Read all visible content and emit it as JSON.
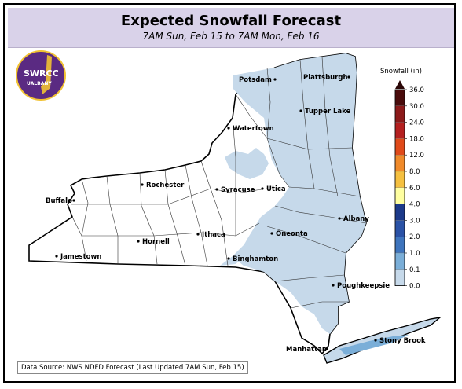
{
  "header": {
    "title": "Expected Snowfall Forecast",
    "subtitle": "7AM Sun, Feb 15 to 7AM Mon, Feb 16"
  },
  "logo": {
    "name": "SWRCC",
    "sub": "UALBANY",
    "number": "1"
  },
  "legend": {
    "title": "Snowfall (in)",
    "ticks": [
      "36.0",
      "30.0",
      "24.0",
      "18.0",
      "12.0",
      "8.0",
      "6.0",
      "4.0",
      "3.0",
      "2.0",
      "1.0",
      "0.1",
      "0.0"
    ],
    "colors": [
      "#4a0c0c",
      "#8c1a1a",
      "#b52020",
      "#e04a1a",
      "#f08a2a",
      "#f5c040",
      "#ffffa0",
      "#1c3a8a",
      "#2a52a6",
      "#3e74bd",
      "#7aaed8",
      "#c6d9ea",
      "#ffffff"
    ]
  },
  "cities": [
    {
      "name": "Potsdam",
      "id": "potsdam"
    },
    {
      "name": "Plattsburgh",
      "id": "plattsburgh"
    },
    {
      "name": "Tupper Lake",
      "id": "tupper-lake"
    },
    {
      "name": "Watertown",
      "id": "watertown"
    },
    {
      "name": "Rochester",
      "id": "rochester"
    },
    {
      "name": "Syracuse",
      "id": "syracuse"
    },
    {
      "name": "Utica",
      "id": "utica"
    },
    {
      "name": "Buffalo",
      "id": "buffalo"
    },
    {
      "name": "Albany",
      "id": "albany"
    },
    {
      "name": "Hornell",
      "id": "hornell"
    },
    {
      "name": "Ithaca",
      "id": "ithaca"
    },
    {
      "name": "Oneonta",
      "id": "oneonta"
    },
    {
      "name": "Jamestown",
      "id": "jamestown"
    },
    {
      "name": "Binghamton",
      "id": "binghamton"
    },
    {
      "name": "Poughkeepsie",
      "id": "poughkeepsie"
    },
    {
      "name": "Stony Brook",
      "id": "stony-brook"
    },
    {
      "name": "Manhattan",
      "id": "manhattan"
    }
  ],
  "footer": {
    "source": "Data Source: NWS NDFD Forecast (Last Updated 7AM Sun, Feb 15)"
  }
}
